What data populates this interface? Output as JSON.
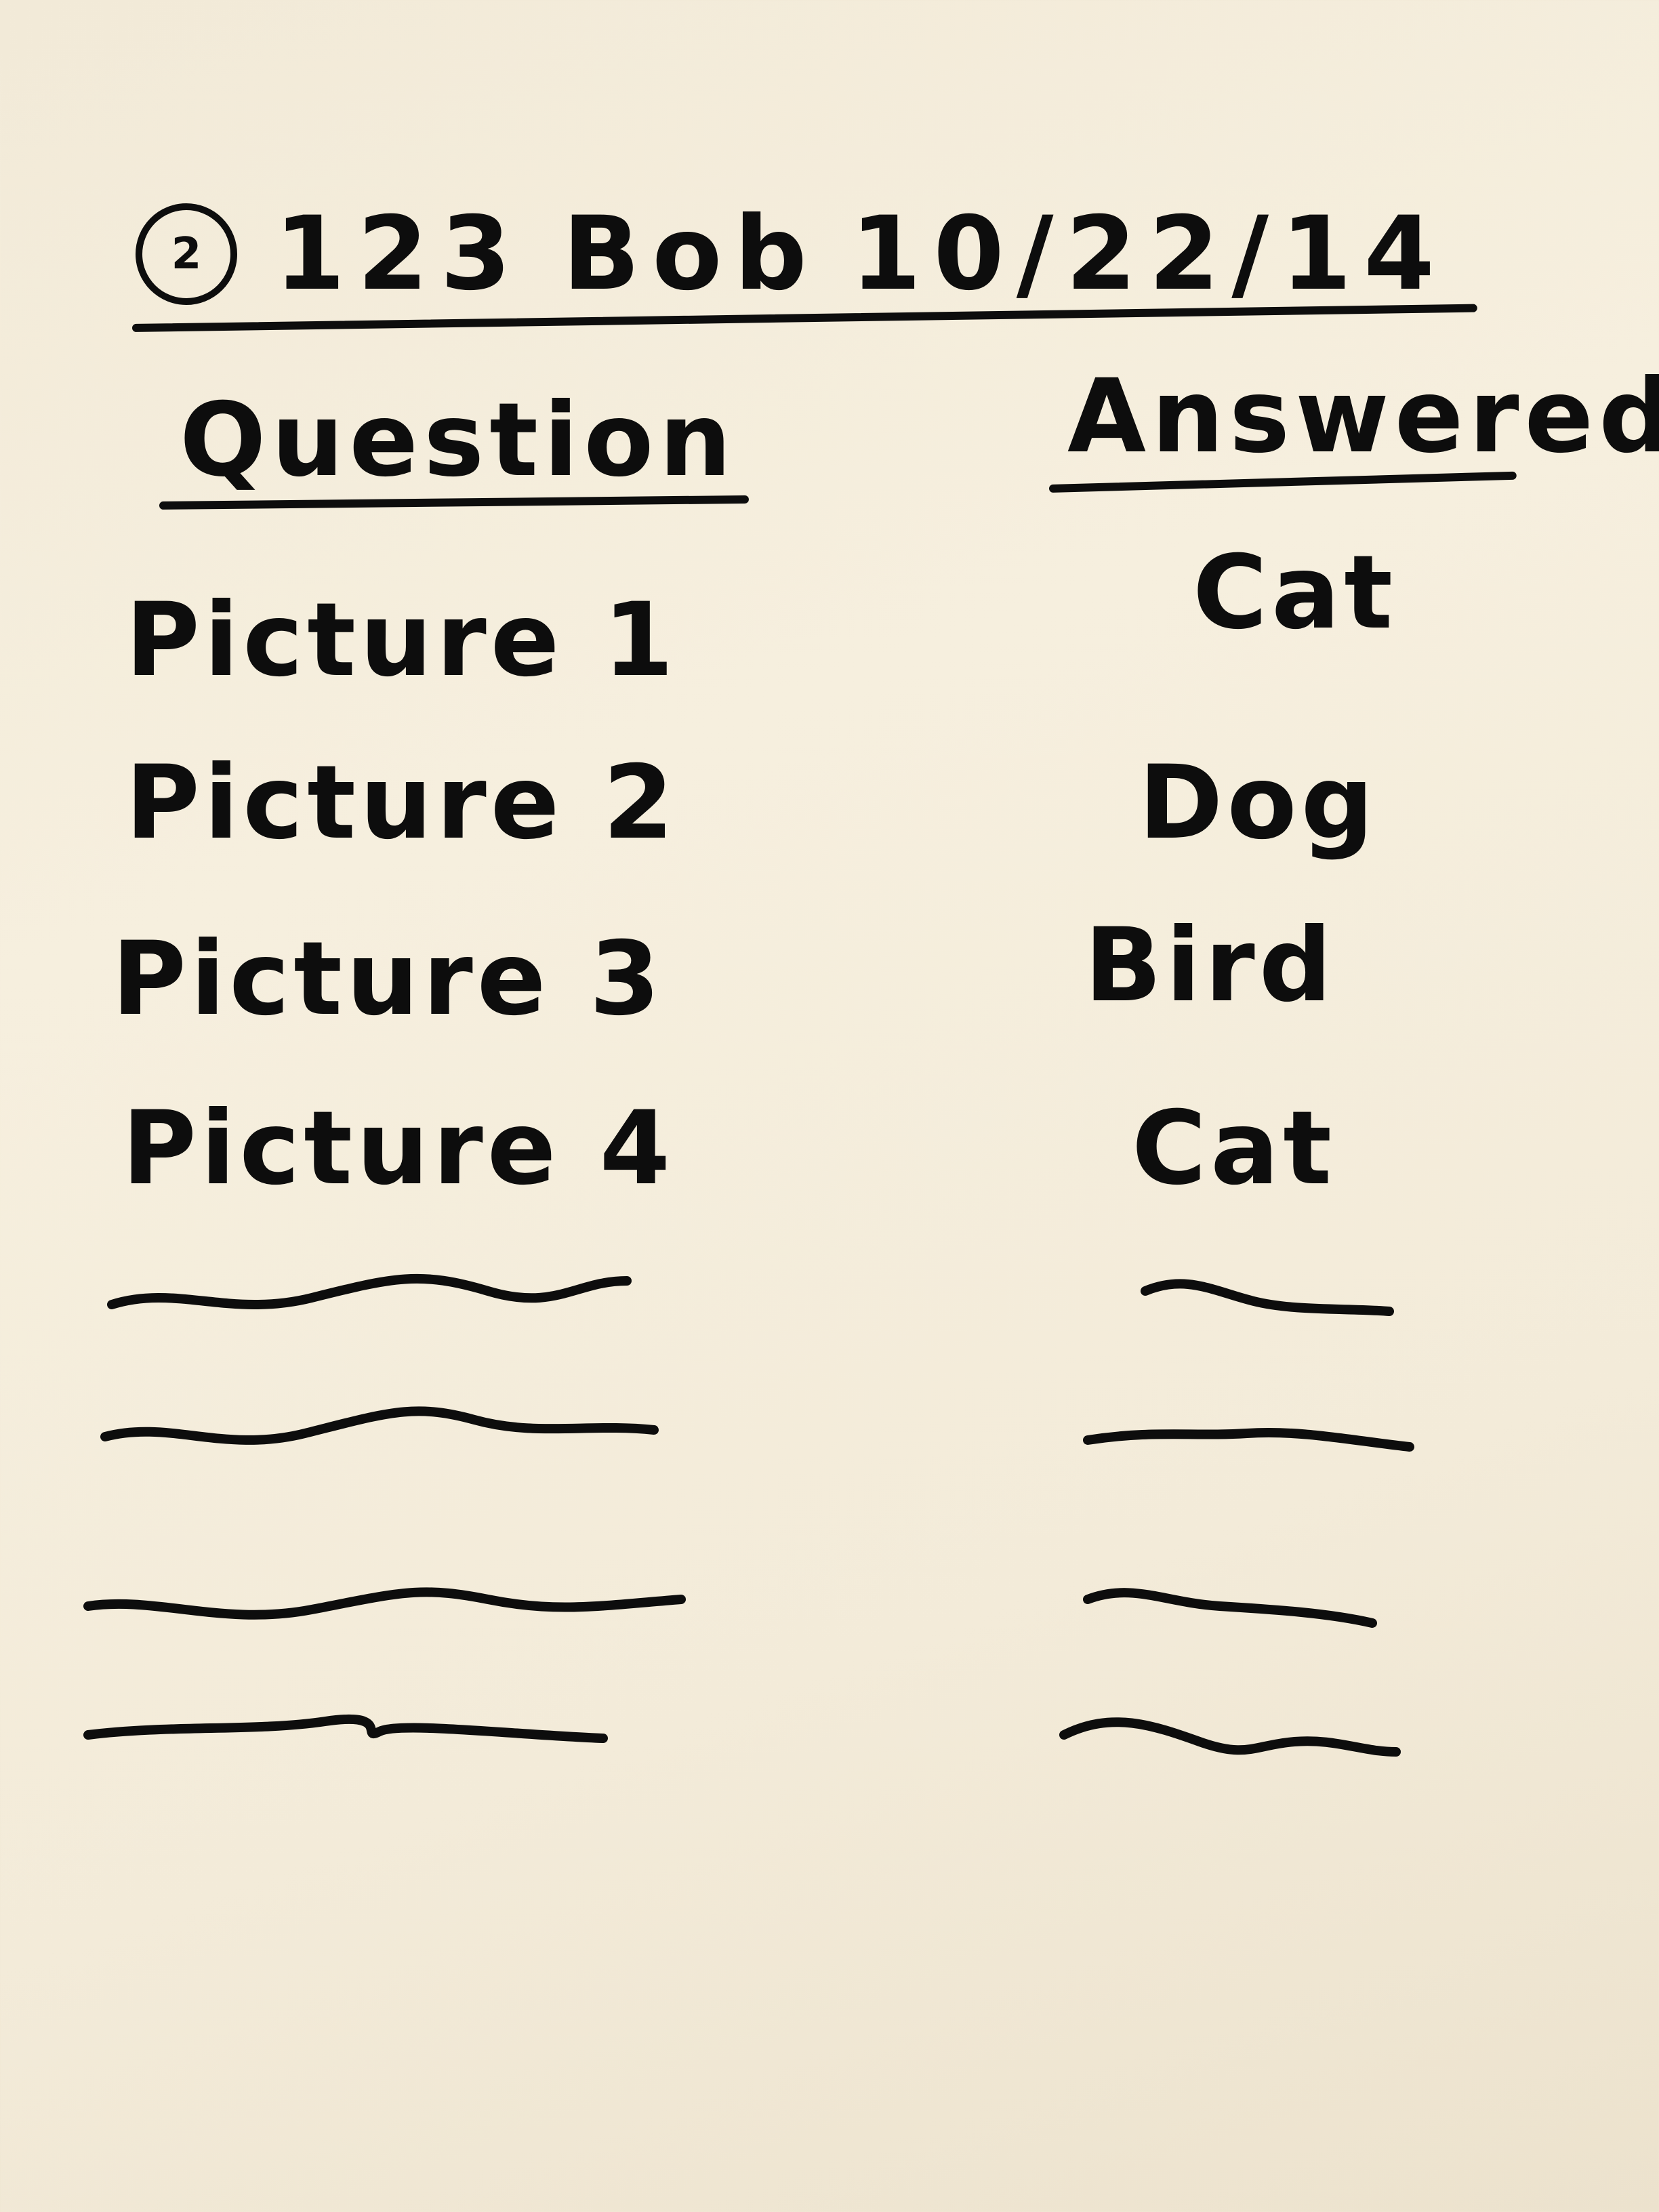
{
  "header": {
    "circled_mark": "2",
    "id_number": "123",
    "name": "Bob",
    "date": "10/22/14"
  },
  "columns": {
    "question": "Question",
    "answered": "Answered"
  },
  "rows": [
    {
      "question": "Picture 1",
      "answer": "Cat"
    },
    {
      "question": "Picture 2",
      "answer": "Dog"
    },
    {
      "question": "Picture 3",
      "answer": "Bird"
    },
    {
      "question": "Picture 4",
      "answer": "Cat"
    }
  ],
  "placeholder_rows": 4,
  "colors": {
    "paper": "#f4ecdb",
    "ink": "#0d0d0d"
  }
}
